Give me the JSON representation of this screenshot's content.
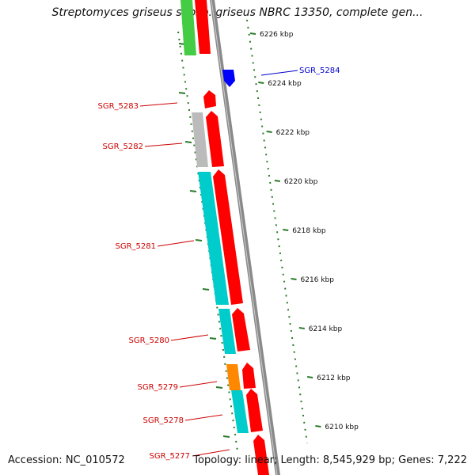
{
  "title": "Streptomyces griseus subsp. griseus NBRC 13350, complete gen...",
  "footer": {
    "accession": "Accession: NC_010572",
    "topology": "Topology: linear; Length: 8,545,929 bp; Genes: 7,222"
  },
  "colors": {
    "gene_red": "#ff0000",
    "gene_blue": "#0000ff",
    "cyan": "#00cccc",
    "green": "#44cc44",
    "gray": "#bbbbbb",
    "orange": "#ff8800",
    "tick": "#2a7a2a",
    "label_red": "#cc0000",
    "label_blue": "#0000cc"
  },
  "ticks": [
    {
      "label": "6226 kbp"
    },
    {
      "label": "6224 kbp"
    },
    {
      "label": "6222 kbp"
    },
    {
      "label": "6220 kbp"
    },
    {
      "label": "6218 kbp"
    },
    {
      "label": "6216 kbp"
    },
    {
      "label": "6214 kbp"
    },
    {
      "label": "6212 kbp"
    },
    {
      "label": "6210 kbp"
    }
  ],
  "genes": [
    {
      "name": "SGR_5284",
      "strand": "reverse"
    },
    {
      "name": "SGR_5283",
      "strand": "forward"
    },
    {
      "name": "SGR_5282",
      "strand": "forward"
    },
    {
      "name": "SGR_5281",
      "strand": "forward"
    },
    {
      "name": "SGR_5280",
      "strand": "forward"
    },
    {
      "name": "SGR_5279",
      "strand": "forward"
    },
    {
      "name": "SGR_5278",
      "strand": "forward"
    },
    {
      "name": "SGR_5277",
      "strand": "forward"
    }
  ]
}
